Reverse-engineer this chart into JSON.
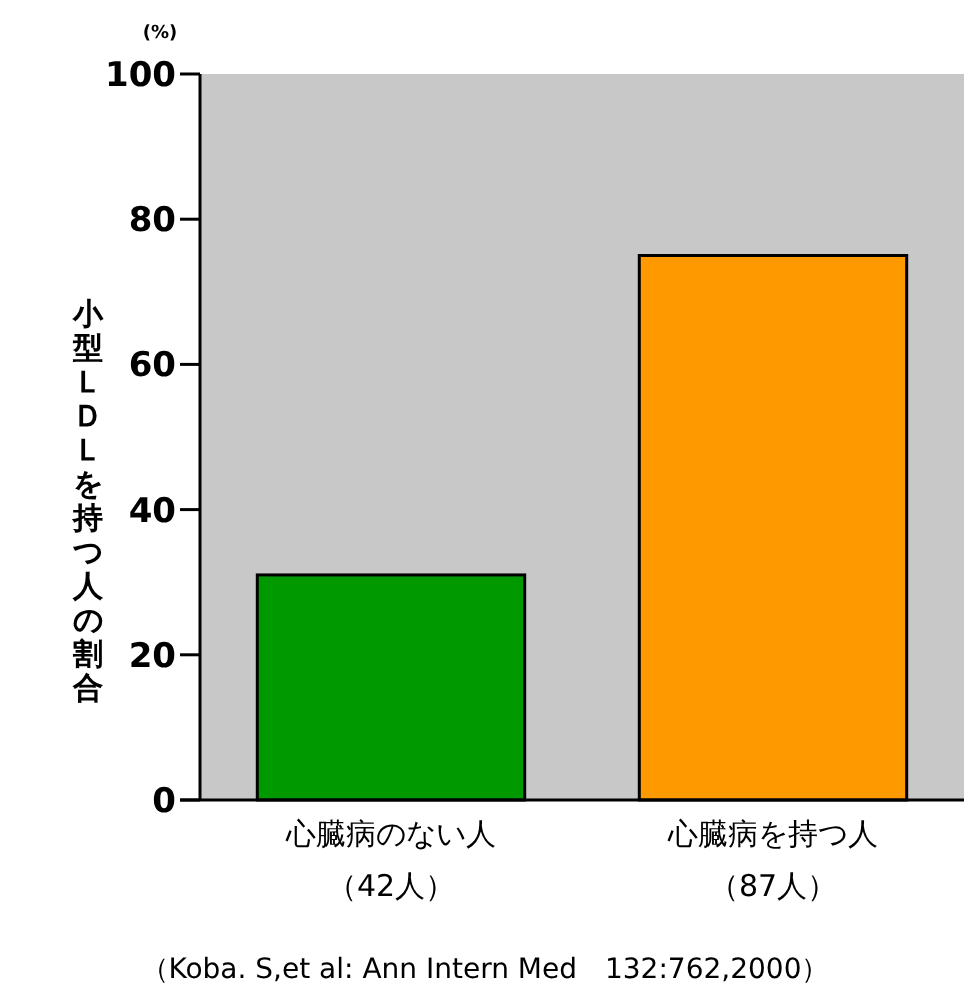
{
  "chart_data": {
    "type": "bar",
    "ylabel": "小型ＬＤＬを持つ人の割合",
    "categories": [
      "心臓病のない人（42人）",
      "心臓病を持つ人（87人）"
    ],
    "values": [
      31,
      75
    ],
    "colors": [
      "#009900",
      "#ff9900"
    ],
    "ylim": [
      0,
      100
    ],
    "yticks": [
      0,
      20,
      40,
      60,
      80,
      100
    ],
    "grid": false,
    "annotations": [
      "(%)",
      "（Koba. S,et al: Ann Intern Med　132:762,2000）"
    ]
  }
}
